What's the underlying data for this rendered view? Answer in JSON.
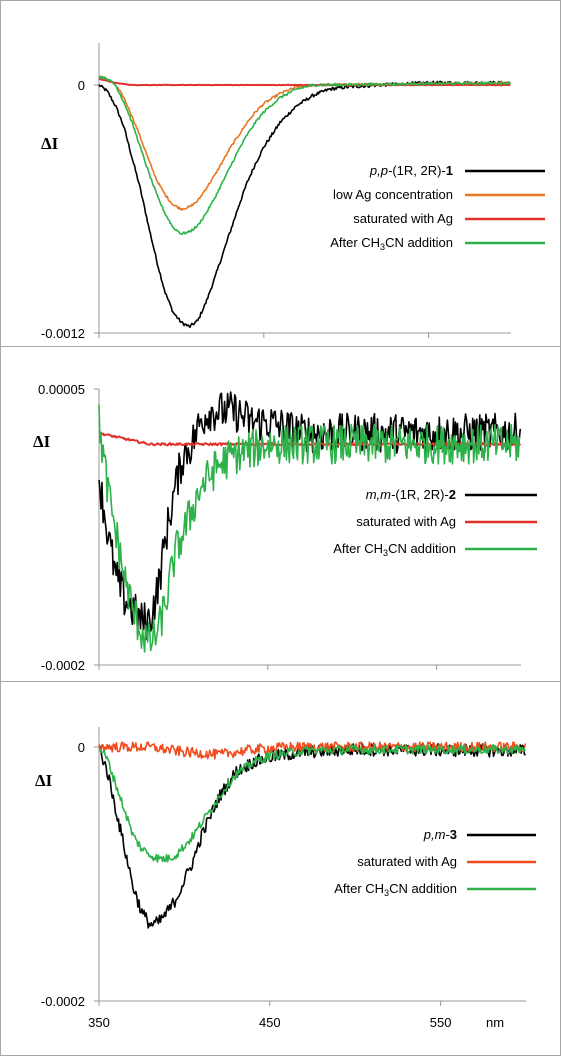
{
  "chart_data": [
    {
      "type": "line",
      "panel": "p1",
      "ylabel": "ΔI",
      "yticks": [
        "0",
        "-0.0012"
      ],
      "ylim": [
        -0.0012,
        0.00015
      ],
      "xlim": [
        350,
        600
      ],
      "series": [
        {
          "legend_pre": "p,p-",
          "legend_main": "(1R, 2R)-",
          "legend_bold": "1",
          "color": "#000000",
          "noise": 8e-06,
          "points": [
            [
              350,
              0
            ],
            [
              355,
              -3e-05
            ],
            [
              360,
              -0.0001
            ],
            [
              365,
              -0.0002
            ],
            [
              370,
              -0.00035
            ],
            [
              375,
              -0.0005
            ],
            [
              380,
              -0.00068
            ],
            [
              385,
              -0.00085
            ],
            [
              390,
              -0.001
            ],
            [
              395,
              -0.0011
            ],
            [
              400,
              -0.00115
            ],
            [
              405,
              -0.00117
            ],
            [
              410,
              -0.00114
            ],
            [
              415,
              -0.00105
            ],
            [
              420,
              -0.00094
            ],
            [
              425,
              -0.00082
            ],
            [
              430,
              -0.0007
            ],
            [
              435,
              -0.00058
            ],
            [
              440,
              -0.00047
            ],
            [
              445,
              -0.00038
            ],
            [
              450,
              -0.0003
            ],
            [
              460,
              -0.00018
            ],
            [
              470,
              -0.0001
            ],
            [
              480,
              -5e-05
            ],
            [
              490,
              -2e-05
            ],
            [
              500,
              -1e-05
            ],
            [
              520,
              0
            ],
            [
              550,
              1e-05
            ],
            [
              600,
              1e-05
            ]
          ]
        },
        {
          "legend_text": "low  Ag concentration",
          "color": "#e87722",
          "noise": 6e-06,
          "points": [
            [
              350,
              4e-05
            ],
            [
              355,
              3e-05
            ],
            [
              360,
              0
            ],
            [
              365,
              -6e-05
            ],
            [
              370,
              -0.00015
            ],
            [
              375,
              -0.00025
            ],
            [
              380,
              -0.00036
            ],
            [
              385,
              -0.00046
            ],
            [
              390,
              -0.00053
            ],
            [
              395,
              -0.00058
            ],
            [
              400,
              -0.0006
            ],
            [
              405,
              -0.00059
            ],
            [
              410,
              -0.00056
            ],
            [
              415,
              -0.0005
            ],
            [
              420,
              -0.00044
            ],
            [
              425,
              -0.00037
            ],
            [
              430,
              -0.0003
            ],
            [
              435,
              -0.00024
            ],
            [
              440,
              -0.00018
            ],
            [
              445,
              -0.00013
            ],
            [
              450,
              -9e-05
            ],
            [
              460,
              -4e-05
            ],
            [
              470,
              -1e-05
            ],
            [
              480,
              0
            ],
            [
              600,
              1e-05
            ]
          ]
        },
        {
          "legend_text": "saturated with Ag",
          "color": "#e0322b",
          "noise": 1e-06,
          "points": [
            [
              350,
              3e-05
            ],
            [
              360,
              1e-05
            ],
            [
              370,
              0
            ],
            [
              600,
              0
            ]
          ]
        },
        {
          "legend_pre_text": "After CH",
          "legend_sub": "3",
          "legend_post_text": "CN addition",
          "color": "#2db24a",
          "noise": 6e-06,
          "points": [
            [
              350,
              4e-05
            ],
            [
              355,
              3e-05
            ],
            [
              360,
              0
            ],
            [
              365,
              -8e-05
            ],
            [
              370,
              -0.00018
            ],
            [
              375,
              -0.0003
            ],
            [
              380,
              -0.00042
            ],
            [
              385,
              -0.00053
            ],
            [
              390,
              -0.00062
            ],
            [
              395,
              -0.00069
            ],
            [
              400,
              -0.00072
            ],
            [
              405,
              -0.00071
            ],
            [
              410,
              -0.00068
            ],
            [
              415,
              -0.00062
            ],
            [
              420,
              -0.00055
            ],
            [
              425,
              -0.00047
            ],
            [
              430,
              -0.00039
            ],
            [
              435,
              -0.00031
            ],
            [
              440,
              -0.00024
            ],
            [
              445,
              -0.00018
            ],
            [
              450,
              -0.00013
            ],
            [
              460,
              -6e-05
            ],
            [
              470,
              -2e-05
            ],
            [
              480,
              0
            ],
            [
              600,
              1e-05
            ]
          ]
        }
      ]
    },
    {
      "type": "line",
      "panel": "p2",
      "ylabel": "ΔI",
      "yticks": [
        "0.00005",
        "-0.0002"
      ],
      "ylim": [
        -0.0002,
        5e-05
      ],
      "xlim": [
        350,
        600
      ],
      "series": [
        {
          "legend_pre": "m,m-",
          "legend_main": "(1R, 2R)-",
          "legend_bold": "2",
          "color": "#000000",
          "noise": 1.8e-05,
          "points": [
            [
              350,
              -3e-05
            ],
            [
              355,
              -8e-05
            ],
            [
              360,
              -0.00012
            ],
            [
              365,
              -0.00014
            ],
            [
              370,
              -0.00015
            ],
            [
              375,
              -0.00016
            ],
            [
              380,
              -0.00016
            ],
            [
              385,
              -0.00013
            ],
            [
              390,
              -8e-05
            ],
            [
              395,
              -4e-05
            ],
            [
              400,
              -1e-05
            ],
            [
              405,
              0
            ],
            [
              410,
              2e-05
            ],
            [
              415,
              3e-05
            ],
            [
              420,
              3e-05
            ],
            [
              430,
              3e-05
            ],
            [
              440,
              2e-05
            ],
            [
              450,
              2e-05
            ],
            [
              470,
              1e-05
            ],
            [
              500,
              1e-05
            ],
            [
              550,
              1e-05
            ],
            [
              600,
              1e-05
            ]
          ]
        },
        {
          "legend_text": "saturated with Ag",
          "color": "#e0322b",
          "noise": 1e-06,
          "points": [
            [
              350,
              1e-05
            ],
            [
              380,
              0
            ],
            [
              420,
              0
            ],
            [
              600,
              0
            ]
          ]
        },
        {
          "legend_pre_text": "After CH",
          "legend_sub": "3",
          "legend_post_text": "CN addition",
          "color": "#2db24a",
          "noise": 1.8e-05,
          "points": [
            [
              350,
              2e-05
            ],
            [
              355,
              -4e-05
            ],
            [
              360,
              -8e-05
            ],
            [
              365,
              -0.00012
            ],
            [
              370,
              -0.00015
            ],
            [
              375,
              -0.00017
            ],
            [
              380,
              -0.00018
            ],
            [
              385,
              -0.00017
            ],
            [
              390,
              -0.00014
            ],
            [
              395,
              -0.0001
            ],
            [
              400,
              -8e-05
            ],
            [
              405,
              -6e-05
            ],
            [
              410,
              -4e-05
            ],
            [
              415,
              -3e-05
            ],
            [
              420,
              -2e-05
            ],
            [
              430,
              -1e-05
            ],
            [
              450,
              0
            ],
            [
              600,
              0
            ]
          ]
        }
      ]
    },
    {
      "type": "line",
      "panel": "p3",
      "ylabel": "ΔI",
      "yticks": [
        "0",
        "-0.0002"
      ],
      "ylim": [
        -0.0002,
        1.2e-05
      ],
      "xlim": [
        350,
        600
      ],
      "xticks": [
        "350",
        "450",
        "550"
      ],
      "xunit": "nm",
      "series": [
        {
          "legend_pre": "p,m-",
          "legend_bold": "3",
          "color": "#000000",
          "noise": 5e-06,
          "points": [
            [
              350,
              0
            ],
            [
              355,
              -2e-05
            ],
            [
              360,
              -5e-05
            ],
            [
              365,
              -8e-05
            ],
            [
              370,
              -0.00011
            ],
            [
              375,
              -0.00013
            ],
            [
              380,
              -0.00014
            ],
            [
              385,
              -0.000138
            ],
            [
              390,
              -0.00013
            ],
            [
              395,
              -0.00012
            ],
            [
              400,
              -0.000105
            ],
            [
              405,
              -9e-05
            ],
            [
              410,
              -7e-05
            ],
            [
              415,
              -5.5e-05
            ],
            [
              420,
              -4e-05
            ],
            [
              425,
              -3e-05
            ],
            [
              430,
              -2e-05
            ],
            [
              440,
              -1.2e-05
            ],
            [
              450,
              -8e-06
            ],
            [
              470,
              -4e-06
            ],
            [
              500,
              -2e-06
            ],
            [
              600,
              -3e-06
            ]
          ]
        },
        {
          "legend_text": "saturated  with Ag",
          "color": "#f04c1e",
          "noise": 4e-06,
          "points": [
            [
              350,
              0
            ],
            [
              380,
              0
            ],
            [
              400,
              -4e-06
            ],
            [
              420,
              -6e-06
            ],
            [
              440,
              -2e-06
            ],
            [
              460,
              0
            ],
            [
              600,
              0
            ]
          ]
        },
        {
          "legend_pre_text": "After CH",
          "legend_sub": "3",
          "legend_post_text": "CN addition",
          "color": "#2db24a",
          "noise": 3.5e-06,
          "points": [
            [
              350,
              0
            ],
            [
              355,
              -1e-05
            ],
            [
              360,
              -3e-05
            ],
            [
              365,
              -5e-05
            ],
            [
              370,
              -7e-05
            ],
            [
              375,
              -8e-05
            ],
            [
              380,
              -8.5e-05
            ],
            [
              385,
              -8.8e-05
            ],
            [
              390,
              -8.8e-05
            ],
            [
              395,
              -8.5e-05
            ],
            [
              400,
              -7.8e-05
            ],
            [
              405,
              -7e-05
            ],
            [
              410,
              -6e-05
            ],
            [
              415,
              -5e-05
            ],
            [
              420,
              -4e-05
            ],
            [
              425,
              -3e-05
            ],
            [
              430,
              -2.2e-05
            ],
            [
              440,
              -1.2e-05
            ],
            [
              450,
              -7e-06
            ],
            [
              470,
              -3e-06
            ],
            [
              500,
              -2e-06
            ],
            [
              600,
              -2e-06
            ]
          ]
        }
      ]
    }
  ]
}
